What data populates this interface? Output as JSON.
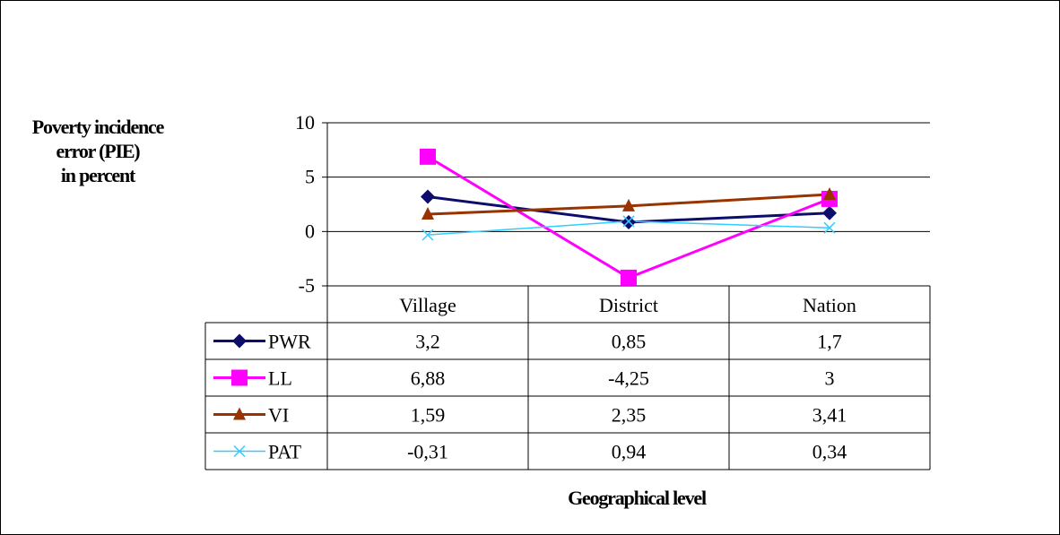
{
  "chart_data": {
    "type": "line",
    "ylabel_lines": [
      "Poverty incidence",
      "error (PIE)",
      "in percent"
    ],
    "xlabel": "Geographical level",
    "categories": [
      "Village",
      "District",
      "Nation"
    ],
    "ylim": [
      -5,
      10
    ],
    "yticks": [
      10,
      5,
      0,
      -5
    ],
    "grid": true,
    "legend": "data table left column",
    "series": [
      {
        "name": "PWR",
        "values": [
          3.2,
          0.85,
          1.7
        ],
        "labels": [
          "3,2",
          "0,85",
          "1,7"
        ],
        "color": "#0d0d6b",
        "marker": "diamond"
      },
      {
        "name": "LL",
        "values": [
          6.88,
          -4.25,
          3
        ],
        "labels": [
          "6,88",
          "-4,25",
          "3"
        ],
        "color": "#ff00ff",
        "marker": "square"
      },
      {
        "name": "VI",
        "values": [
          1.59,
          2.35,
          3.41
        ],
        "labels": [
          "1,59",
          "2,35",
          "3,41"
        ],
        "color": "#993300",
        "marker": "triangle"
      },
      {
        "name": "PAT",
        "values": [
          -0.31,
          0.94,
          0.34
        ],
        "labels": [
          "-0,31",
          "0,94",
          "0,34"
        ],
        "color": "#33ccff",
        "marker": "x"
      }
    ]
  }
}
